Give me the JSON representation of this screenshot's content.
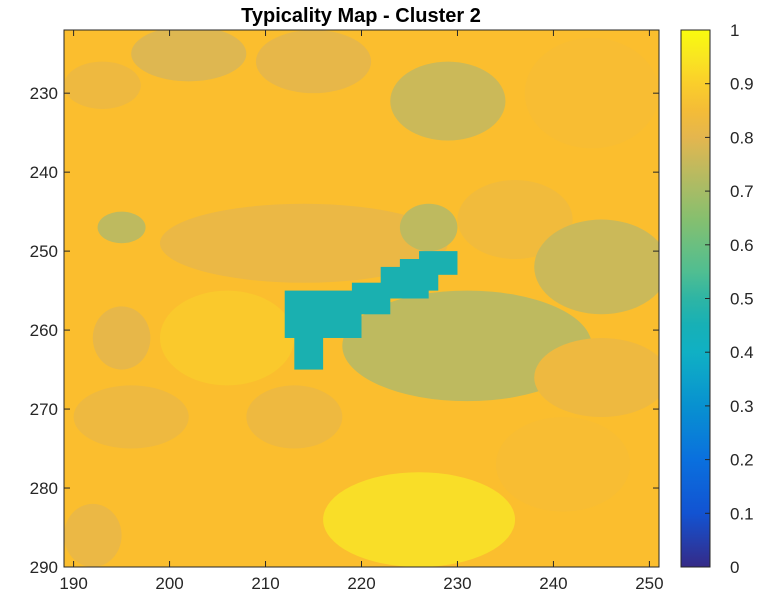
{
  "chart_data": {
    "type": "heatmap",
    "title": "Typicality Map - Cluster 2",
    "xlabel": "",
    "ylabel": "",
    "x_range": [
      189,
      251
    ],
    "y_range": [
      222,
      290
    ],
    "y_direction": "reverse",
    "x_ticks": [
      190,
      200,
      210,
      220,
      230,
      240,
      250
    ],
    "y_ticks": [
      230,
      240,
      250,
      260,
      270,
      280,
      290
    ],
    "colorbar": {
      "colormap": "parula",
      "range": [
        0,
        1
      ],
      "ticks": [
        0,
        0.1,
        0.2,
        0.3,
        0.4,
        0.5,
        0.6,
        0.7,
        0.8,
        0.9,
        1
      ],
      "tick_labels": [
        "0",
        "0.1",
        "0.2",
        "0.3",
        "0.4",
        "0.5",
        "0.6",
        "0.7",
        "0.8",
        "0.9",
        "1"
      ]
    },
    "background_value": 0.87,
    "regions": [
      {
        "label": "grain-top-left",
        "shape": "ellipse",
        "center": [
          193,
          229
        ],
        "radii": [
          4,
          3
        ],
        "value": 0.83
      },
      {
        "label": "grain-top-mid",
        "shape": "ellipse",
        "center": [
          202,
          225
        ],
        "radii": [
          6,
          3.5
        ],
        "value": 0.79
      },
      {
        "label": "grain-top-right-a",
        "shape": "ellipse",
        "center": [
          215,
          226
        ],
        "radii": [
          6,
          4
        ],
        "value": 0.81
      },
      {
        "label": "grain-top-right-b",
        "shape": "ellipse",
        "center": [
          229,
          231
        ],
        "radii": [
          6,
          5
        ],
        "value": 0.76
      },
      {
        "label": "grain-right-upper",
        "shape": "ellipse",
        "center": [
          244,
          230
        ],
        "radii": [
          7,
          7
        ],
        "value": 0.86
      },
      {
        "label": "grain-mid-band",
        "shape": "ellipse",
        "center": [
          214,
          249
        ],
        "radii": [
          15,
          5
        ],
        "value": 0.82
      },
      {
        "label": "grain-mid-right",
        "shape": "ellipse",
        "center": [
          236,
          246
        ],
        "radii": [
          6,
          5
        ],
        "value": 0.84
      },
      {
        "label": "grain-green-left",
        "shape": "ellipse",
        "center": [
          195,
          247
        ],
        "radii": [
          2.5,
          2
        ],
        "value": 0.74
      },
      {
        "label": "grain-green-center",
        "shape": "ellipse",
        "center": [
          227,
          247
        ],
        "radii": [
          3,
          3
        ],
        "value": 0.74
      },
      {
        "label": "grain-right-mid",
        "shape": "ellipse",
        "center": [
          245,
          252
        ],
        "radii": [
          7,
          6
        ],
        "value": 0.76
      },
      {
        "label": "grain-left-bright",
        "shape": "ellipse",
        "center": [
          206,
          261
        ],
        "radii": [
          7,
          6
        ],
        "value": 0.89
      },
      {
        "label": "grain-left-lower",
        "shape": "ellipse",
        "center": [
          195,
          261
        ],
        "radii": [
          3,
          4
        ],
        "value": 0.81
      },
      {
        "label": "grain-large-olive",
        "shape": "ellipse",
        "center": [
          231,
          262
        ],
        "radii": [
          13,
          7
        ],
        "value": 0.74
      },
      {
        "label": "grain-right-low",
        "shape": "ellipse",
        "center": [
          245,
          266
        ],
        "radii": [
          7,
          5
        ],
        "value": 0.83
      },
      {
        "label": "grain-bottom-left",
        "shape": "ellipse",
        "center": [
          196,
          271
        ],
        "radii": [
          6,
          4
        ],
        "value": 0.83
      },
      {
        "label": "grain-bottom-mid",
        "shape": "ellipse",
        "center": [
          213,
          271
        ],
        "radii": [
          5,
          4
        ],
        "value": 0.83
      },
      {
        "label": "grain-bottom-right",
        "shape": "ellipse",
        "center": [
          241,
          277
        ],
        "radii": [
          7,
          6
        ],
        "value": 0.86
      },
      {
        "label": "grain-bottom-bright",
        "shape": "ellipse",
        "center": [
          226,
          284
        ],
        "radii": [
          10,
          6
        ],
        "value": 0.93
      },
      {
        "label": "grain-bottom-corner",
        "shape": "ellipse",
        "center": [
          192,
          286
        ],
        "radii": [
          3,
          4
        ],
        "value": 0.82
      },
      {
        "label": "cyan-band-1",
        "shape": "rect",
        "x": [
          213,
          216
        ],
        "y": [
          256,
          265
        ],
        "value": 0.47
      },
      {
        "label": "cyan-band-2",
        "shape": "rect",
        "x": [
          212,
          220
        ],
        "y": [
          255,
          261
        ],
        "value": 0.47
      },
      {
        "label": "cyan-band-3",
        "shape": "rect",
        "x": [
          219,
          223
        ],
        "y": [
          254,
          258
        ],
        "value": 0.47
      },
      {
        "label": "cyan-band-4",
        "shape": "rect",
        "x": [
          222,
          227
        ],
        "y": [
          252,
          256
        ],
        "value": 0.47
      },
      {
        "label": "cyan-band-5",
        "shape": "rect",
        "x": [
          226,
          230
        ],
        "y": [
          250,
          253
        ],
        "value": 0.47
      },
      {
        "label": "cyan-band-6",
        "shape": "rect",
        "x": [
          224,
          228
        ],
        "y": [
          251,
          255
        ],
        "value": 0.47
      }
    ]
  }
}
